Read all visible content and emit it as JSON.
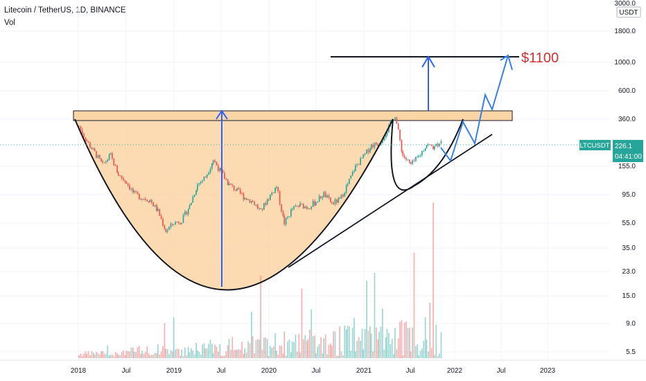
{
  "header": {
    "title": "Litecoin / TetherUS, 1D, BINANCE",
    "indicator": "Vol"
  },
  "price_axis": {
    "currency_badge": "USDT",
    "ticks": [
      "3000.0",
      "1800.0",
      "1000.0",
      "600.0",
      "360.0",
      "155.0",
      "95.0",
      "55.0",
      "35.0",
      "23.0",
      "15.0",
      "9.0",
      "5.5"
    ]
  },
  "time_axis": {
    "ticks": [
      "2018",
      "Jul",
      "2019",
      "Jul",
      "2020",
      "Jul",
      "2021",
      "Jul",
      "2022",
      "Jul",
      "2023"
    ]
  },
  "last_price": {
    "symbol": "LTCUSDT",
    "price": "226.1",
    "countdown": "04:41:00"
  },
  "annotation": {
    "target": "$1100"
  },
  "colors": {
    "up": "#26a69a",
    "down": "#ef5350",
    "cup_fill": "#fbd5a6",
    "arrows": "#2962ff",
    "projection": "#3a7ee8",
    "target_text": "#d32f2f",
    "last_price_bg": "#26a69a"
  },
  "chart_data": {
    "type": "candlestick",
    "scale": "log",
    "y_ticks": [
      3000,
      1800,
      1000,
      600,
      360,
      155,
      95,
      55,
      35,
      23,
      15,
      9,
      5.5
    ],
    "price_path": [
      {
        "x": "2018-01",
        "y": 300
      },
      {
        "x": "2018-02",
        "y": 210
      },
      {
        "x": "2018-03",
        "y": 160
      },
      {
        "x": "2018-04",
        "y": 120
      },
      {
        "x": "2018-05",
        "y": 150
      },
      {
        "x": "2018-06",
        "y": 95
      },
      {
        "x": "2018-07",
        "y": 80
      },
      {
        "x": "2018-08",
        "y": 60
      },
      {
        "x": "2018-09",
        "y": 55
      },
      {
        "x": "2018-10",
        "y": 52
      },
      {
        "x": "2018-11",
        "y": 40
      },
      {
        "x": "2018-12",
        "y": 25
      },
      {
        "x": "2019-01",
        "y": 30
      },
      {
        "x": "2019-02",
        "y": 32
      },
      {
        "x": "2019-03",
        "y": 45
      },
      {
        "x": "2019-04",
        "y": 75
      },
      {
        "x": "2019-05",
        "y": 90
      },
      {
        "x": "2019-06",
        "y": 135
      },
      {
        "x": "2019-07",
        "y": 100
      },
      {
        "x": "2019-08",
        "y": 75
      },
      {
        "x": "2019-09",
        "y": 65
      },
      {
        "x": "2019-10",
        "y": 55
      },
      {
        "x": "2019-11",
        "y": 50
      },
      {
        "x": "2019-12",
        "y": 40
      },
      {
        "x": "2020-01",
        "y": 55
      },
      {
        "x": "2020-02",
        "y": 72
      },
      {
        "x": "2020-03",
        "y": 30
      },
      {
        "x": "2020-04",
        "y": 42
      },
      {
        "x": "2020-05",
        "y": 46
      },
      {
        "x": "2020-06",
        "y": 44
      },
      {
        "x": "2020-07",
        "y": 50
      },
      {
        "x": "2020-08",
        "y": 60
      },
      {
        "x": "2020-09",
        "y": 48
      },
      {
        "x": "2020-10",
        "y": 52
      },
      {
        "x": "2020-11",
        "y": 75
      },
      {
        "x": "2020-12",
        "y": 115
      },
      {
        "x": "2021-01",
        "y": 145
      },
      {
        "x": "2021-02",
        "y": 190
      },
      {
        "x": "2021-03",
        "y": 200
      },
      {
        "x": "2021-04",
        "y": 270
      },
      {
        "x": "2021-05",
        "y": 390
      },
      {
        "x": "2021-06",
        "y": 150
      },
      {
        "x": "2021-07",
        "y": 120
      },
      {
        "x": "2021-08",
        "y": 145
      },
      {
        "x": "2021-09",
        "y": 195
      },
      {
        "x": "2021-10",
        "y": 180
      },
      {
        "x": "2021-11",
        "y": 226
      }
    ]
  }
}
